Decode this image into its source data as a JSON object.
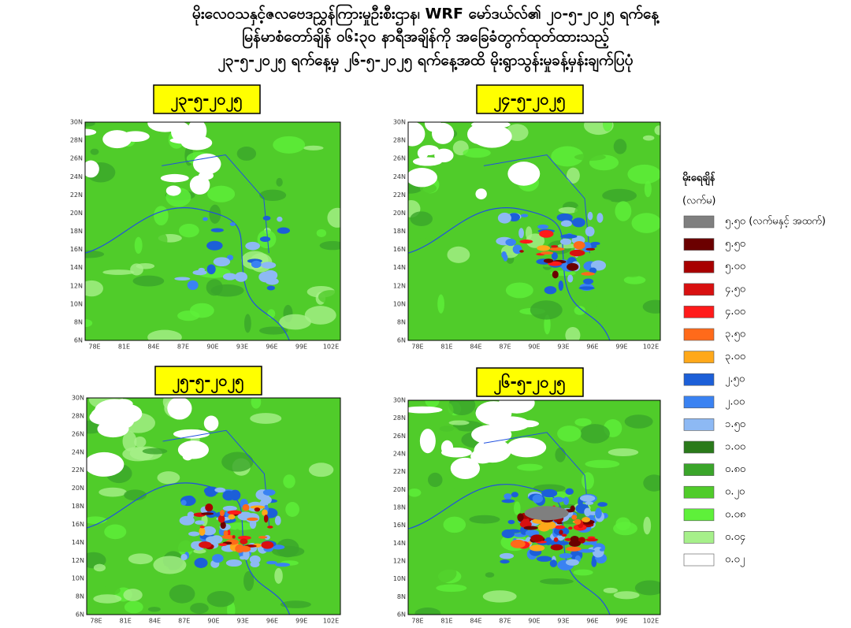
{
  "header": {
    "lines": [
      "မိုးလေဝသနှင့်ဇလဗေဒညွှန်ကြားမှုဦးစီးဌာန၊ WRF မော်ဒယ်လ်၏ ၂၀-၅-၂၀၂၅ ရက်နေ့",
      "မြန်မာစံတော်ချိန် ၀၆:၃၀ နာရီအချိန်ကို အခြေခံတွက်ထုတ်ထားသည့်",
      "၂၃-၅-၂၀၂၅ ရက်နေ့မှ ၂၆-၅-၂၀၂၅ ရက်နေ့အထိ မိုးရွာသွန်းမှုခန့်မှန်းချက်ပြပုံ"
    ]
  },
  "map_axes": {
    "latitudes": [
      "6N",
      "8N",
      "10N",
      "12N",
      "14N",
      "16N",
      "18N",
      "20N",
      "22N",
      "24N",
      "26N",
      "28N",
      "30N"
    ],
    "longitudes": [
      "78E",
      "81E",
      "84E",
      "87E",
      "90E",
      "93E",
      "96E",
      "99E",
      "102E"
    ]
  },
  "panels": [
    {
      "date": "၂၃-၅-၂၀၂၅"
    },
    {
      "date": "၂၄-၅-၂၀၂၅"
    },
    {
      "date": "၂၅-၅-၂၀၂၅"
    },
    {
      "date": "၂၆-၅-၂၀၂၅"
    }
  ],
  "legend": {
    "title": "မိုးရေချိန်",
    "unit": "(လက်မ)",
    "items": [
      {
        "label": "၅.၅၀ (လက်မနှင့် အထက်)",
        "color": "#7f7f7f"
      },
      {
        "label": "၅.၅၀",
        "color": "#6b0000"
      },
      {
        "label": "၅.၀၀",
        "color": "#a80000"
      },
      {
        "label": "၄.၅၀",
        "color": "#d81010"
      },
      {
        "label": "၄.၀၀",
        "color": "#ff1a1a"
      },
      {
        "label": "၃.၅၀",
        "color": "#ff6a1a"
      },
      {
        "label": "၃.၀၀",
        "color": "#ffa81a"
      },
      {
        "label": "၂.၅၀",
        "color": "#1c5fd8"
      },
      {
        "label": "၂.၀၀",
        "color": "#3a82f2"
      },
      {
        "label": "၁.၅၀",
        "color": "#8db9f4"
      },
      {
        "label": "၁.၀၀",
        "color": "#2a7a1a"
      },
      {
        "label": "၀.၈၀",
        "color": "#3aa52a"
      },
      {
        "label": "၀.၂၀",
        "color": "#50cc2a"
      },
      {
        "label": "၀.၀၈",
        "color": "#5ef03a"
      },
      {
        "label": "၀.၀၄",
        "color": "#a6f08a"
      },
      {
        "label": "၀.၀၂",
        "color": "#ffffff"
      }
    ]
  }
}
